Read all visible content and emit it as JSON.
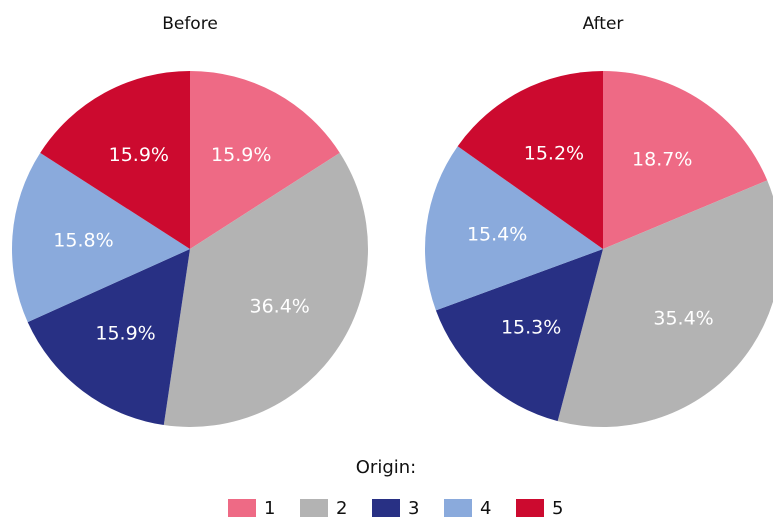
{
  "chart_data": [
    {
      "type": "pie",
      "title": "Before",
      "categories": [
        "1",
        "2",
        "3",
        "4",
        "5"
      ],
      "values": [
        15.9,
        36.4,
        15.9,
        15.8,
        15.9
      ],
      "value_labels": [
        "15.9%",
        "36.4%",
        "15.9%",
        "15.8%",
        "15.9%"
      ],
      "colors": [
        "#ee6a85",
        "#b3b3b3",
        "#283084",
        "#8aaadc",
        "#cc0a2f"
      ]
    },
    {
      "type": "pie",
      "title": "After",
      "categories": [
        "1",
        "2",
        "3",
        "4",
        "5"
      ],
      "values": [
        18.7,
        35.4,
        15.3,
        15.4,
        15.2
      ],
      "value_labels": [
        "18.7%",
        "35.4%",
        "15.3%",
        "15.4%",
        "15.2%"
      ],
      "colors": [
        "#ee6a85",
        "#b3b3b3",
        "#283084",
        "#8aaadc",
        "#cc0a2f"
      ]
    }
  ],
  "legend_title": "Origin:"
}
